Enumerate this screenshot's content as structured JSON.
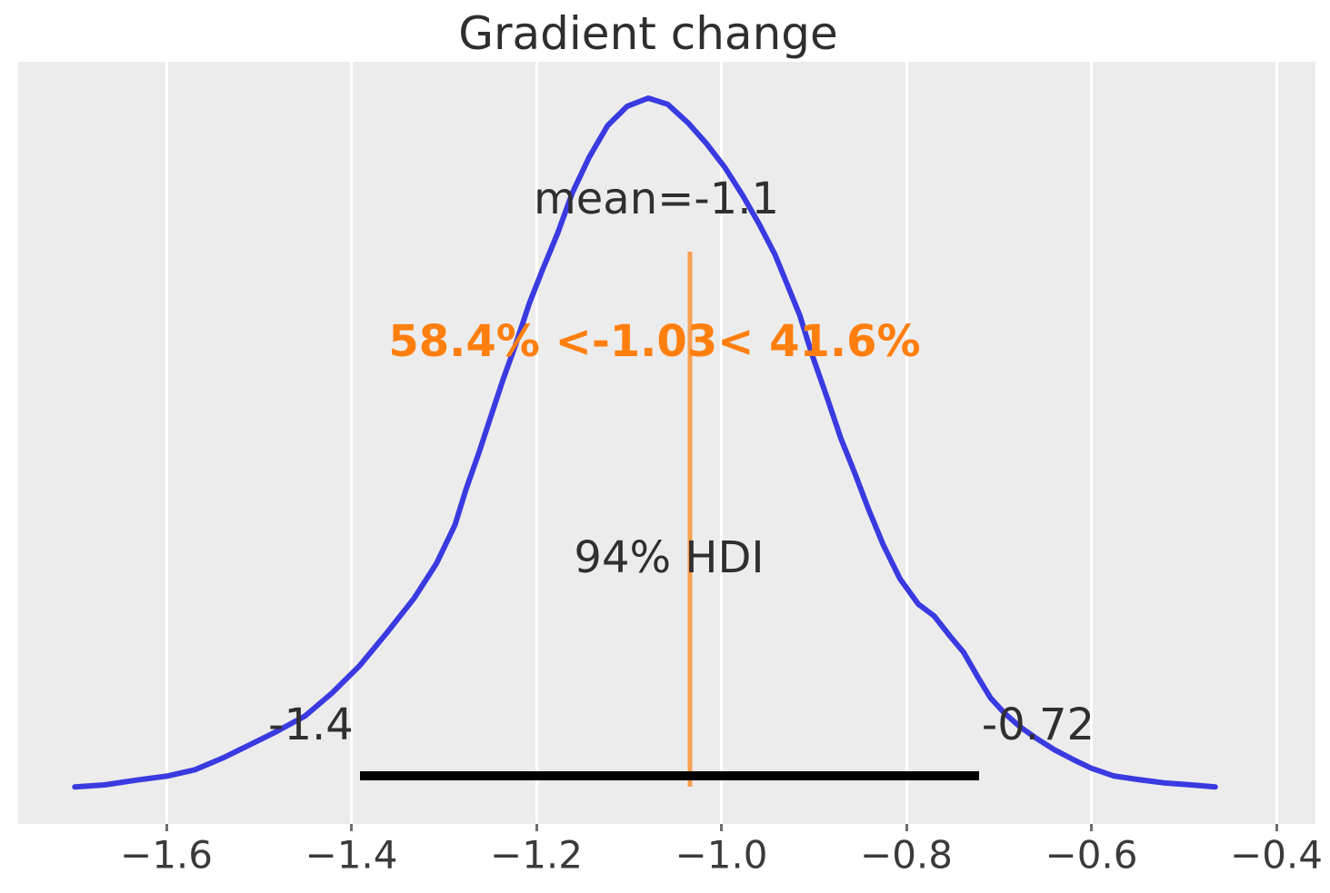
{
  "chart_data": {
    "type": "kde",
    "title": "Gradient change",
    "subtitle": "",
    "xlabel": "",
    "ylabel": "",
    "xlim": [
      -1.76,
      -0.36
    ],
    "grid": "vertical-white-on-gray",
    "legend": "none",
    "x_ticks": {
      "values": [
        -1.6,
        -1.4,
        -1.2,
        -1.0,
        -0.8,
        -0.6,
        -0.4
      ],
      "labels": [
        "−1.6",
        "−1.4",
        "−1.2",
        "−1.0",
        "−0.8",
        "−0.6",
        "−0.4"
      ]
    },
    "stats": {
      "mean": -1.1,
      "ref_val": -1.03,
      "pct_below_ref": 58.4,
      "pct_above_ref": 41.6,
      "hdi_prob": 0.94,
      "hdi_lower": -1.4,
      "hdi_upper": -0.72
    },
    "annotations": {
      "mean_label": "mean=-1.1",
      "ref_val_label": "58.4% <-1.03< 41.6%",
      "hdi_label": "94% HDI",
      "hdi_lower_label": "-1.4",
      "hdi_upper_label": "-0.72"
    },
    "colors": {
      "curve": "#3a3ae1",
      "ref_line": "#f8a051",
      "ref_text": "#ff7f0e",
      "hdi_bar": "#000000",
      "plot_bg": "#ececec",
      "gridline": "#ffffff",
      "text": "#2f2f2f",
      "tick_text": "#3a3a3a"
    },
    "density": {
      "x": [
        -1.699,
        -1.667,
        -1.632,
        -1.598,
        -1.569,
        -1.539,
        -1.51,
        -1.48,
        -1.45,
        -1.421,
        -1.391,
        -1.362,
        -1.332,
        -1.308,
        -1.288,
        -1.276,
        -1.262,
        -1.249,
        -1.236,
        -1.222,
        -1.208,
        -1.193,
        -1.177,
        -1.161,
        -1.143,
        -1.123,
        -1.102,
        -1.079,
        -1.058,
        -1.036,
        -1.016,
        -0.996,
        -0.977,
        -0.959,
        -0.942,
        -0.928,
        -0.915,
        -0.902,
        -0.885,
        -0.871,
        -0.856,
        -0.841,
        -0.825,
        -0.807,
        -0.787,
        -0.77,
        -0.753,
        -0.738,
        -0.723,
        -0.709,
        -0.694,
        -0.677,
        -0.66,
        -0.64,
        -0.62,
        -0.6,
        -0.576,
        -0.551,
        -0.522,
        -0.492,
        -0.466
      ],
      "d": [
        0.001,
        0.004,
        0.011,
        0.017,
        0.026,
        0.043,
        0.062,
        0.082,
        0.104,
        0.137,
        0.177,
        0.224,
        0.275,
        0.325,
        0.381,
        0.433,
        0.486,
        0.539,
        0.592,
        0.644,
        0.701,
        0.752,
        0.804,
        0.863,
        0.914,
        0.96,
        0.988,
        1.0,
        0.991,
        0.964,
        0.934,
        0.899,
        0.859,
        0.817,
        0.773,
        0.727,
        0.684,
        0.628,
        0.563,
        0.507,
        0.457,
        0.404,
        0.352,
        0.303,
        0.266,
        0.249,
        0.22,
        0.196,
        0.161,
        0.13,
        0.108,
        0.088,
        0.072,
        0.055,
        0.041,
        0.028,
        0.017,
        0.012,
        0.007,
        0.004,
        0.001
      ]
    }
  }
}
